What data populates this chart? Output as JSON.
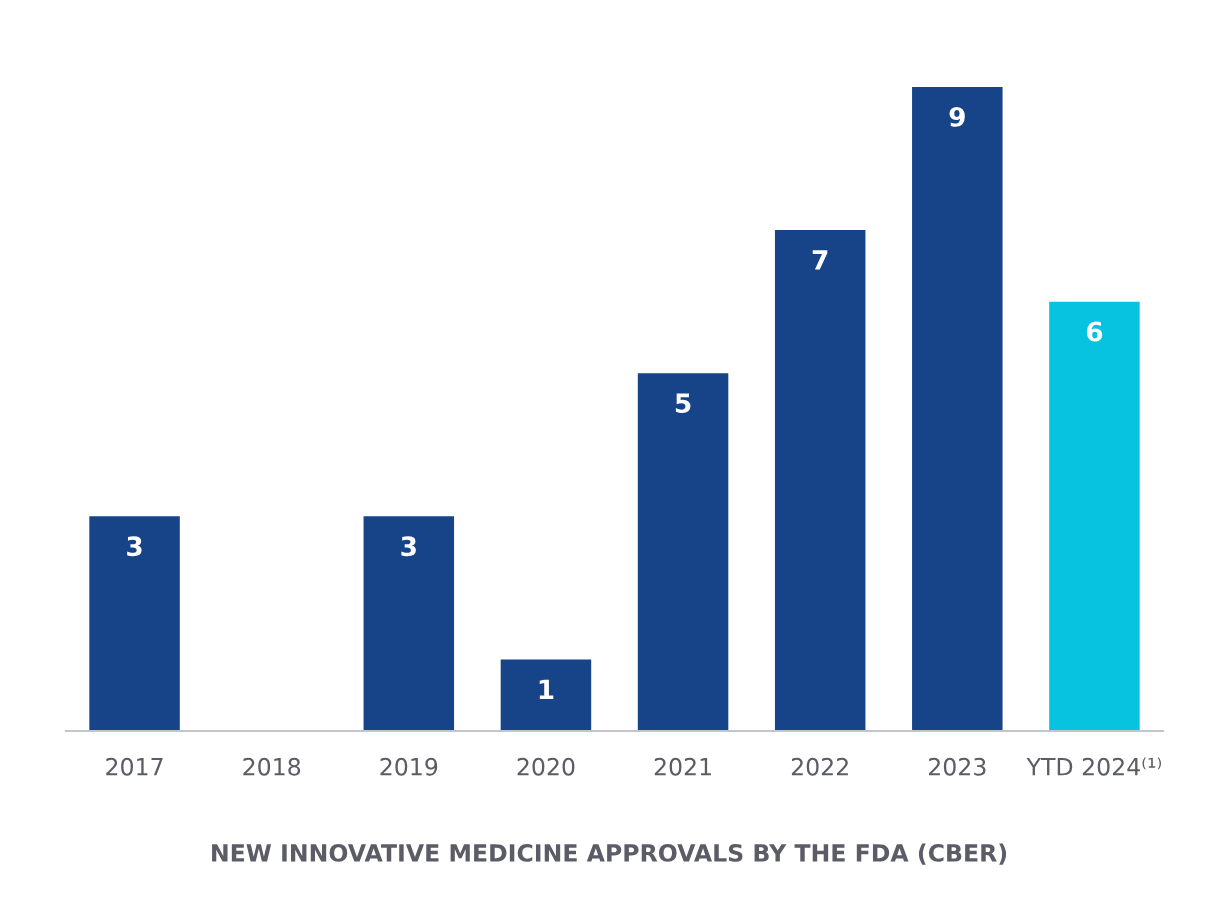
{
  "chart_data": {
    "type": "bar",
    "title": "NEW INNOVATIVE MEDICINE APPROVALS BY THE FDA (CBER)",
    "categories": [
      "2017",
      "2018",
      "2019",
      "2020",
      "2021",
      "2022",
      "2023",
      "YTD 2024⁽¹⁾"
    ],
    "values": [
      3,
      0,
      3,
      1,
      5,
      7,
      9,
      6
    ],
    "colors": [
      "#174389",
      "#174389",
      "#174389",
      "#174389",
      "#174389",
      "#174389",
      "#174389",
      "#08c3e0"
    ],
    "value_labels": [
      "3",
      null,
      "3",
      "1",
      "5",
      "7",
      "9",
      "6"
    ],
    "tick_labels": "x"
  }
}
